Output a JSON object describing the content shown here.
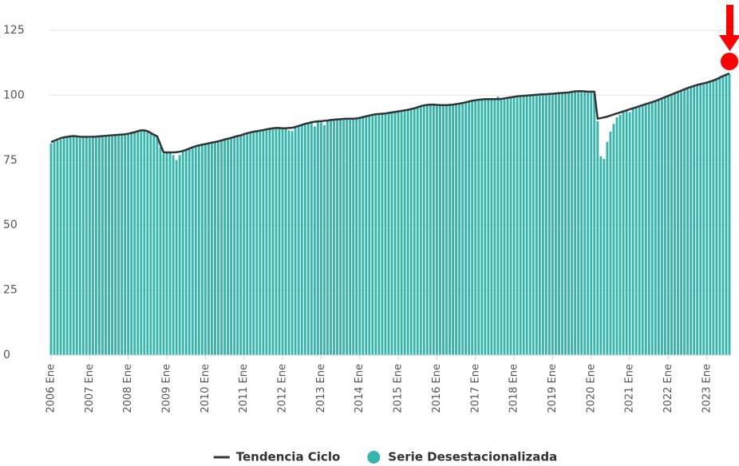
{
  "chart_data": {
    "type": "bar",
    "categories": [
      "2006 Ene",
      null,
      null,
      null,
      null,
      null,
      null,
      null,
      null,
      null,
      null,
      null,
      "2007 Ene",
      null,
      null,
      null,
      null,
      null,
      null,
      null,
      null,
      null,
      null,
      null,
      "2008 Ene",
      null,
      null,
      null,
      null,
      null,
      null,
      null,
      null,
      null,
      null,
      null,
      "2009 Ene",
      null,
      null,
      null,
      null,
      null,
      null,
      null,
      null,
      null,
      null,
      null,
      "2010 Ene",
      null,
      null,
      null,
      null,
      null,
      null,
      null,
      null,
      null,
      null,
      null,
      "2011 Ene",
      null,
      null,
      null,
      null,
      null,
      null,
      null,
      null,
      null,
      null,
      null,
      "2012 Ene",
      null,
      null,
      null,
      null,
      null,
      null,
      null,
      null,
      null,
      null,
      null,
      "2013 Ene",
      null,
      null,
      null,
      null,
      null,
      null,
      null,
      null,
      null,
      null,
      null,
      "2014 Ene",
      null,
      null,
      null,
      null,
      null,
      null,
      null,
      null,
      null,
      null,
      null,
      "2015 Ene",
      null,
      null,
      null,
      null,
      null,
      null,
      null,
      null,
      null,
      null,
      null,
      "2016 Ene",
      null,
      null,
      null,
      null,
      null,
      null,
      null,
      null,
      null,
      null,
      null,
      "2017 Ene",
      null,
      null,
      null,
      null,
      null,
      null,
      null,
      null,
      null,
      null,
      null,
      "2018 Ene",
      null,
      null,
      null,
      null,
      null,
      null,
      null,
      null,
      null,
      null,
      null,
      "2019 Ene",
      null,
      null,
      null,
      null,
      null,
      null,
      null,
      null,
      null,
      null,
      null,
      "2020 Ene",
      null,
      null,
      null,
      null,
      null,
      null,
      null,
      null,
      null,
      null,
      null,
      "2021 Ene",
      null,
      null,
      null,
      null,
      null,
      null,
      null,
      null,
      null,
      null,
      null,
      "2022 Ene",
      null,
      null,
      null,
      null,
      null,
      null,
      null,
      null,
      null,
      null,
      null,
      "2023 Ene",
      null,
      null,
      null,
      null,
      null,
      null,
      null
    ],
    "series": [
      {
        "name": "Tendencia Ciclo",
        "type": "line",
        "color": "#333333",
        "values": [
          82,
          82.5,
          83,
          83.5,
          83.8,
          84,
          84.2,
          84.3,
          84.2,
          84,
          84,
          84,
          84,
          84,
          84.1,
          84.2,
          84.3,
          84.4,
          84.5,
          84.6,
          84.7,
          84.8,
          84.9,
          85,
          85.2,
          85.5,
          85.8,
          86.2,
          86.5,
          86.5,
          86.2,
          85.5,
          84.8,
          84.2,
          81,
          78,
          78,
          78,
          78,
          78.1,
          78.3,
          78.6,
          79,
          79.5,
          80,
          80.4,
          80.7,
          81,
          81.2,
          81.5,
          81.8,
          82,
          82.3,
          82.6,
          83,
          83.3,
          83.6,
          84,
          84.3,
          84.6,
          85,
          85.4,
          85.7,
          86,
          86.2,
          86.4,
          86.6,
          86.9,
          87.1,
          87.3,
          87.4,
          87.4,
          87.3,
          87.3,
          87.4,
          87.5,
          87.8,
          88.2,
          88.6,
          89,
          89.3,
          89.6,
          89.8,
          90,
          90,
          90.2,
          90.3,
          90.5,
          90.6,
          90.7,
          90.8,
          90.9,
          91,
          91,
          91,
          91.1,
          91.3,
          91.6,
          91.9,
          92.2,
          92.5,
          92.7,
          92.8,
          92.9,
          93,
          93.2,
          93.4,
          93.6,
          93.8,
          94,
          94.2,
          94.4,
          94.7,
          95,
          95.4,
          95.8,
          96.1,
          96.3,
          96.4,
          96.4,
          96.3,
          96.2,
          96.2,
          96.2,
          96.3,
          96.4,
          96.6,
          96.8,
          97,
          97.3,
          97.6,
          97.9,
          98.1,
          98.3,
          98.4,
          98.5,
          98.5,
          98.5,
          98.5,
          98.5,
          98.6,
          98.8,
          99,
          99.2,
          99.4,
          99.6,
          99.7,
          99.8,
          99.9,
          100,
          100.1,
          100.2,
          100.3,
          100.4,
          100.4,
          100.5,
          100.6,
          100.7,
          100.8,
          100.9,
          101,
          101.1,
          101.3,
          101.5,
          101.6,
          101.6,
          101.5,
          101.4,
          101.4,
          101.4,
          91,
          91.2,
          91.5,
          91.8,
          92.2,
          92.6,
          93,
          93.4,
          93.8,
          94.2,
          94.6,
          95,
          95.4,
          95.8,
          96.2,
          96.6,
          97,
          97.4,
          97.8,
          98.3,
          98.8,
          99.3,
          99.8,
          100.3,
          100.8,
          101.3,
          101.8,
          102.3,
          102.8,
          103.2,
          103.6,
          104,
          104.3,
          104.6,
          104.9,
          105.3,
          105.7,
          106.2,
          106.8,
          107.4,
          107.9,
          108.4
        ]
      },
      {
        "name": "Serie Desestacionalizada",
        "type": "bar",
        "color": "#35b5ab",
        "values": [
          81.5,
          82,
          82.5,
          83,
          83.5,
          83.8,
          84,
          84.2,
          83.8,
          83.5,
          84,
          84,
          83.5,
          83.8,
          84,
          84,
          84.5,
          84.2,
          84.4,
          84.8,
          84.5,
          84.6,
          85,
          84.8,
          84.8,
          85.5,
          86,
          86,
          86.5,
          86.8,
          86,
          85.5,
          85,
          84,
          80,
          77.5,
          77.8,
          78,
          77,
          75,
          77,
          78.5,
          79,
          79.5,
          80,
          80.5,
          80.8,
          81,
          81,
          81.4,
          81.8,
          82,
          82.2,
          82.8,
          83,
          83.5,
          83.4,
          84,
          84.2,
          84.8,
          85,
          85.5,
          85.5,
          86.2,
          86,
          86.5,
          86.5,
          86.8,
          87.2,
          87,
          87.5,
          87.2,
          87,
          87.4,
          86.5,
          86.2,
          87.5,
          88,
          88.5,
          89,
          89.2,
          89.5,
          88,
          90,
          89.5,
          88.5,
          90.5,
          90.2,
          90.8,
          90.5,
          91,
          90.8,
          91.2,
          91,
          90.8,
          91.2,
          91.2,
          91.8,
          91.8,
          92.5,
          92.3,
          93,
          92.6,
          93,
          93.2,
          93,
          93.5,
          93.5,
          94,
          93.8,
          94.5,
          94.3,
          94.8,
          95.2,
          95.5,
          96,
          96.2,
          96.4,
          96.2,
          96.6,
          96.2,
          96.5,
          96,
          96.4,
          96.2,
          96.6,
          96.5,
          97,
          97.1,
          97.2,
          97.8,
          98,
          98,
          98.5,
          98.2,
          98.6,
          98.4,
          98.7,
          98.3,
          99.5,
          98.6,
          99,
          99,
          99.4,
          99.2,
          99.8,
          99.6,
          100,
          99.8,
          100.2,
          100,
          100.4,
          100.2,
          100.6,
          100.3,
          100.8,
          100.4,
          100.8,
          100.6,
          101,
          100.8,
          101.2,
          101.4,
          101.5,
          101.8,
          101.5,
          101.6,
          101.2,
          101.5,
          101,
          90,
          76.5,
          75.5,
          82,
          86,
          89,
          91.5,
          92.5,
          93.5,
          94,
          93.5,
          95,
          95.5,
          96,
          96,
          96.8,
          97,
          97.5,
          98,
          98.5,
          99,
          99.5,
          100,
          100.5,
          101,
          101.5,
          102,
          102.5,
          103,
          103,
          103.5,
          104,
          104.2,
          104.5,
          105,
          105.2,
          105.8,
          106,
          106.8,
          107.2,
          107.8,
          108.2
        ]
      }
    ],
    "ylim": [
      0,
      125
    ],
    "yticks": [
      0,
      25,
      50,
      75,
      100,
      125
    ],
    "grid": true
  }
}
